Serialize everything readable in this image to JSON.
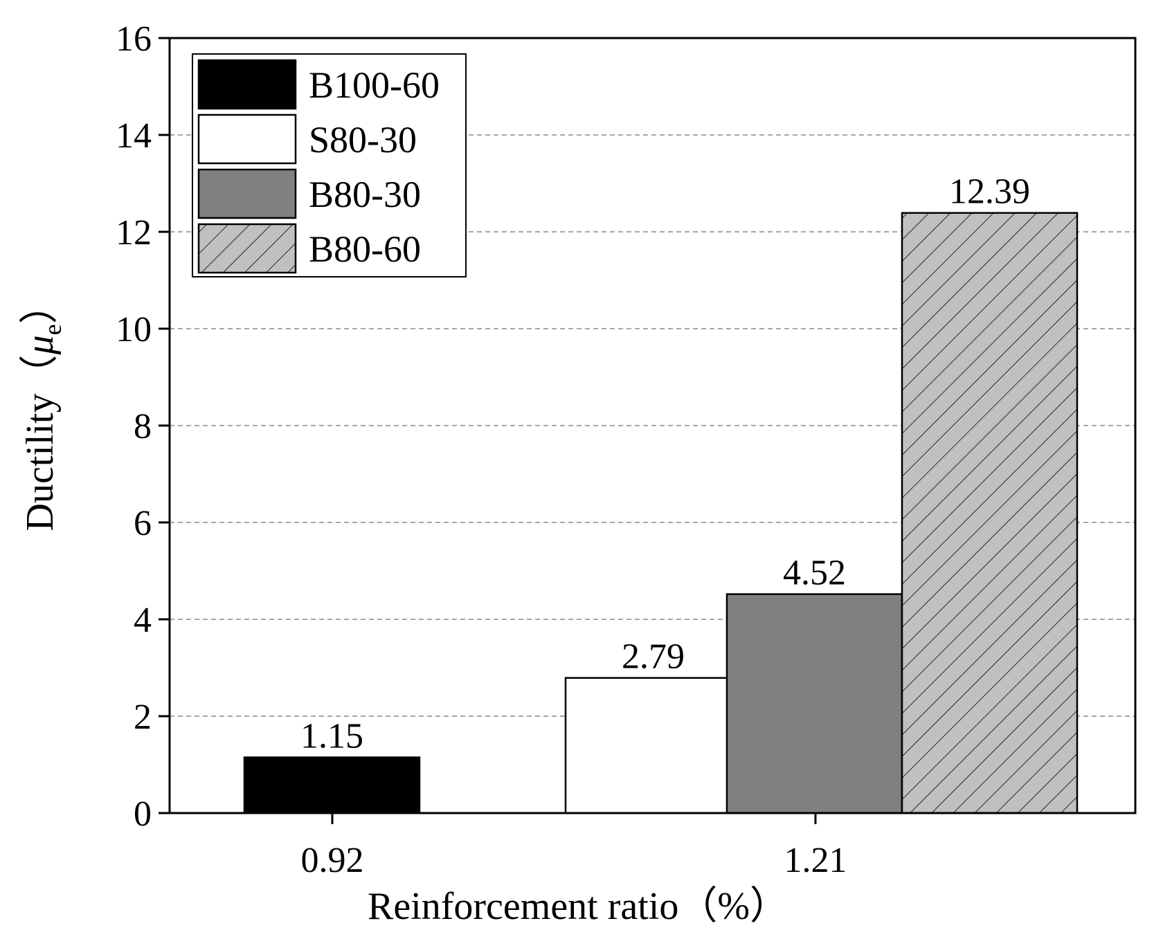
{
  "chart_data": {
    "type": "bar",
    "xlabel": "Reinforcement ratio（%）",
    "ylabel_main": "Ductility（",
    "ylabel_symbol": "μ",
    "ylabel_subscript": "e",
    "ylabel_close": "）",
    "ylim": [
      0,
      16
    ],
    "yticks": [
      0,
      2,
      4,
      6,
      8,
      10,
      12,
      14,
      16
    ],
    "grid": "horizontal-dashed",
    "legend_position": "top-left",
    "categories": [
      "0.92",
      "1.21"
    ],
    "bars": [
      {
        "series": "B100-60",
        "category": "0.92",
        "value": 1.15,
        "label": "1.15"
      },
      {
        "series": "S80-30",
        "category": "1.21",
        "value": 2.79,
        "label": "2.79"
      },
      {
        "series": "B80-30",
        "category": "1.21",
        "value": 4.52,
        "label": "4.52"
      },
      {
        "series": "B80-60",
        "category": "1.21",
        "value": 12.39,
        "label": "12.39"
      }
    ],
    "series": [
      {
        "name": "B100-60",
        "fill": "#000000",
        "pattern": "solid"
      },
      {
        "name": "S80-30",
        "fill": "#ffffff",
        "pattern": "solid"
      },
      {
        "name": "B80-30",
        "fill": "#808080",
        "pattern": "solid"
      },
      {
        "name": "B80-60",
        "fill": "#c0c0c0",
        "pattern": "hatch"
      }
    ]
  }
}
